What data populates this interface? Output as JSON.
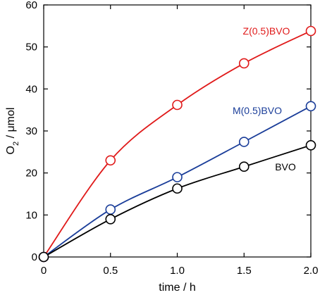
{
  "chart_data": {
    "type": "line",
    "xlabel": "time / h",
    "ylabel_main": "O",
    "ylabel_sub": "2",
    "ylabel_rest": " / μmol",
    "xlim": [
      0,
      2
    ],
    "ylim": [
      0,
      60
    ],
    "x_ticks": [
      0,
      0.5,
      1,
      1.5,
      2
    ],
    "x_tick_labels": [
      "0",
      "0.5",
      "1.0",
      "1.5",
      "2.0"
    ],
    "y_ticks": [
      0,
      10,
      20,
      30,
      40,
      50,
      60
    ],
    "y_tick_labels": [
      "0",
      "10",
      "20",
      "30",
      "40",
      "50",
      "60"
    ],
    "grid": false,
    "series": [
      {
        "name": "Z(0.5)BVO",
        "color": "#e01a1a",
        "x": [
          0,
          0.5,
          1,
          1.5,
          2
        ],
        "values": [
          0,
          23,
          36.2,
          46.1,
          53.8
        ]
      },
      {
        "name": "M(0.5)BVO",
        "color": "#1a3d99",
        "x": [
          0,
          0.5,
          1,
          1.5,
          2
        ],
        "values": [
          0,
          11.3,
          19,
          27.4,
          35.9
        ]
      },
      {
        "name": "BVO",
        "color": "#000000",
        "x": [
          0,
          0.5,
          1,
          1.5,
          2
        ],
        "values": [
          0,
          9,
          16.3,
          21.5,
          26.6
        ]
      }
    ]
  }
}
